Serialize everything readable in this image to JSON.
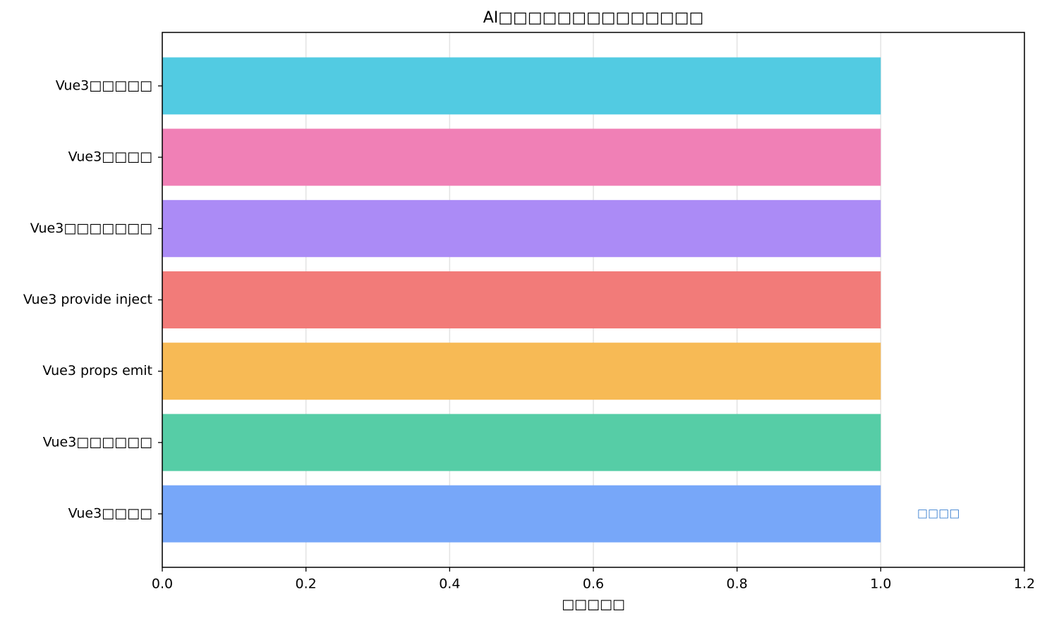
{
  "chart_data": {
    "type": "barh",
    "title": "AI□□□□□□□□□□□□□□",
    "xlabel": "□□□□□",
    "annotation": "□□□□",
    "categories": [
      "Vue3□□□□□",
      "Vue3□□□□",
      "Vue3□□□□□□□",
      "Vue3 provide inject",
      "Vue3 props emit",
      "Vue3□□□□□□",
      "Vue3□□□□"
    ],
    "values": [
      1.0,
      1.0,
      1.0,
      1.0,
      1.0,
      1.0,
      1.0
    ],
    "colors": [
      "#52cbe2",
      "#f080b6",
      "#ab8bf6",
      "#f27b79",
      "#f7ba55",
      "#56cda6",
      "#77a7f9"
    ],
    "xlim": [
      0,
      1.2
    ],
    "xticks": [
      {
        "value": 0,
        "label": "0.0"
      },
      {
        "value": 0.2,
        "label": "0.2"
      },
      {
        "value": 0.4,
        "label": "0.4"
      },
      {
        "value": 0.6,
        "label": "0.6"
      },
      {
        "value": 0.8,
        "label": "0.8"
      },
      {
        "value": 1.0,
        "label": "1.0"
      },
      {
        "value": 1.2,
        "label": "1.2"
      }
    ],
    "grid": true
  }
}
